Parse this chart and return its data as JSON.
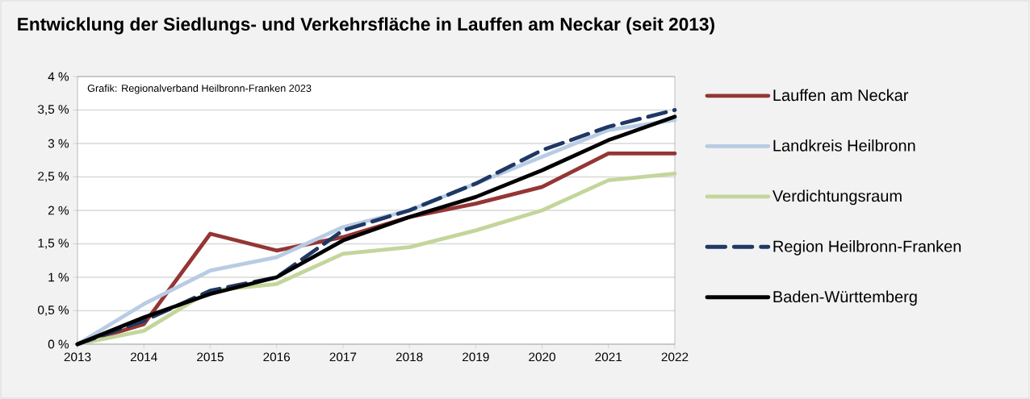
{
  "chart_data": {
    "type": "line",
    "title": "Entwicklung der Siedlungs- und Verkehrsfläche in Lauffen am Neckar (seit 2013)",
    "x": [
      2013,
      2014,
      2015,
      2016,
      2017,
      2018,
      2019,
      2020,
      2021,
      2022
    ],
    "xlim": [
      2013,
      2022
    ],
    "xticks": [
      2013,
      2014,
      2015,
      2016,
      2017,
      2018,
      2019,
      2020,
      2021,
      2022
    ],
    "ylim": [
      0,
      4
    ],
    "yticks": [
      {
        "value": 0,
        "label": "0 %"
      },
      {
        "value": 0.5,
        "label": "0,5 %"
      },
      {
        "value": 1,
        "label": "1 %"
      },
      {
        "value": 1.5,
        "label": "1,5 %"
      },
      {
        "value": 2,
        "label": "2 %"
      },
      {
        "value": 2.5,
        "label": "2,5 %"
      },
      {
        "value": 3,
        "label": "3 %"
      },
      {
        "value": 3.5,
        "label": "3,5 %"
      },
      {
        "value": 4,
        "label": "4 %"
      }
    ],
    "grid": "y",
    "legend": "right",
    "marker": "none",
    "annotations": [
      "Grafik: Regionalverband Heilbronn-Franken 2023"
    ],
    "series": [
      {
        "name": "Lauffen am Neckar",
        "color": "#943634",
        "values": [
          0,
          0.3,
          1.65,
          1.4,
          1.6,
          1.9,
          2.1,
          2.35,
          2.85,
          2.85
        ]
      },
      {
        "name": "Landkreis Heilbronn",
        "color": "#b8cce4",
        "values": [
          0,
          0.6,
          1.1,
          1.3,
          1.75,
          2.0,
          2.4,
          2.8,
          3.2,
          3.35
        ]
      },
      {
        "name": "Verdichtungsraum",
        "color": "#c3d69b",
        "values": [
          0,
          0.2,
          0.8,
          0.9,
          1.35,
          1.45,
          1.7,
          2.0,
          2.45,
          2.55
        ]
      },
      {
        "name": "Region Heilbronn-Franken",
        "color": "#1f3864",
        "line_style": "dashed",
        "values": [
          0,
          0.35,
          0.8,
          1.0,
          1.7,
          2.0,
          2.4,
          2.9,
          3.25,
          3.5
        ]
      },
      {
        "name": "Baden-Württemberg",
        "color": "#000000",
        "values": [
          0,
          0.4,
          0.75,
          1.0,
          1.55,
          1.9,
          2.2,
          2.6,
          3.05,
          3.4
        ]
      }
    ]
  }
}
